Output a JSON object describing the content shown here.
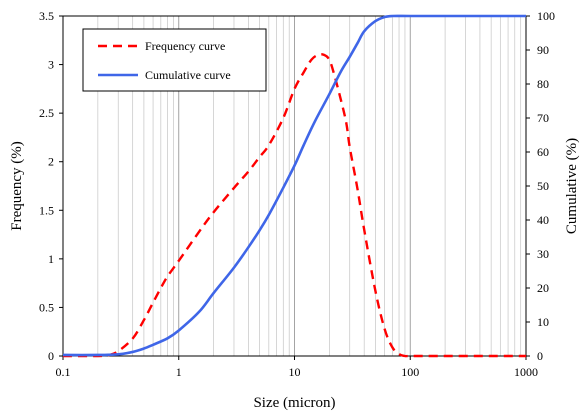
{
  "chart_data": {
    "type": "line",
    "title": "",
    "xlabel": "Size (micron)",
    "ylabel": "Frequency (%)",
    "y2label": "Cumulative (%)",
    "xscale": "log",
    "xlim": [
      0.1,
      1000
    ],
    "ylim": [
      0,
      3.5
    ],
    "y2lim": [
      0,
      100
    ],
    "x_ticks": [
      "0.1",
      "1",
      "10",
      "100",
      "1000"
    ],
    "y_ticks": [
      "0",
      "0.5",
      "1",
      "1.5",
      "2",
      "2.5",
      "3",
      "3.5"
    ],
    "y2_ticks": [
      "0",
      "10",
      "20",
      "30",
      "40",
      "50",
      "60",
      "70",
      "80",
      "90",
      "100"
    ],
    "grid": "vertical minor log gridlines",
    "legend_position": "top-left",
    "series": [
      {
        "name": "Frequency curve",
        "axis": "left",
        "color": "#ff0000",
        "style": "dashed",
        "x": [
          0.1,
          0.2,
          0.25,
          0.3,
          0.4,
          0.5,
          0.6,
          0.7,
          0.8,
          1.0,
          1.5,
          2.0,
          3.0,
          4.0,
          5.0,
          6.0,
          8.0,
          10.0,
          12.0,
          14.0,
          16.0,
          18.0,
          20.0,
          22.0,
          25.0,
          28.0,
          30.0,
          35.0,
          40.0,
          50.0,
          60.0,
          70.0,
          80.0,
          90.0,
          100.0,
          200.0,
          500.0,
          1000.0
        ],
        "y": [
          0,
          0,
          0.01,
          0.05,
          0.18,
          0.37,
          0.55,
          0.7,
          0.82,
          0.98,
          1.28,
          1.48,
          1.73,
          1.9,
          2.05,
          2.17,
          2.45,
          2.75,
          2.92,
          3.05,
          3.1,
          3.1,
          3.05,
          2.9,
          2.65,
          2.4,
          2.15,
          1.72,
          1.3,
          0.67,
          0.28,
          0.09,
          0.02,
          0,
          0,
          0,
          0,
          0
        ]
      },
      {
        "name": "Cumulative curve",
        "axis": "right",
        "color": "#3f66e8",
        "style": "solid",
        "x": [
          0.1,
          0.2,
          0.3,
          0.4,
          0.5,
          0.6,
          0.8,
          1.0,
          1.5,
          2.0,
          3.0,
          4.0,
          5.0,
          6.0,
          8.0,
          10.0,
          12.0,
          15.0,
          20.0,
          25.0,
          30.0,
          35.0,
          40.0,
          50.0,
          60.0,
          70.0,
          100.0,
          200.0,
          500.0,
          1000.0
        ],
        "y": [
          0.3,
          0.3,
          0.5,
          1.2,
          2.2,
          3.3,
          5.2,
          7.5,
          13,
          18.5,
          26,
          32,
          37,
          41.5,
          49.5,
          56,
          62,
          69,
          77,
          83.5,
          88,
          92,
          95.5,
          98.5,
          99.7,
          100,
          100,
          100,
          100,
          100
        ]
      }
    ]
  }
}
